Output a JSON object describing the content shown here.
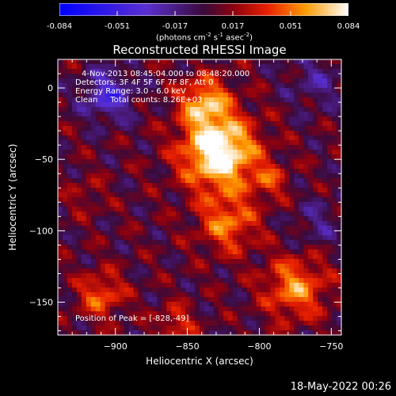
{
  "colorbar": {
    "ticks": [
      "-0.084",
      "-0.051",
      "-0.017",
      "0.017",
      "0.051",
      "0.084"
    ],
    "unit_prefix": "(photons cm",
    "unit_exp1": "-2",
    "unit_mid1": " s",
    "unit_exp2": "-1",
    "unit_mid2": " asec",
    "unit_exp3": "-2",
    "unit_suffix": ")"
  },
  "info": {
    "time": "4-Nov-2013 08:45:04.000 to 08:48:20.000",
    "detectors": "Detectors: 3F 4F 5F 6F 7F 8F, Att 0",
    "energy": "Energy Range: 3.0 - 6.0 keV",
    "clean": "Clean     Total counts: 8.26E+03",
    "peak": "Position of Peak = [-828,-49]"
  },
  "footer": "18-May-2022 00:26",
  "colors": {
    "background": "#000000",
    "text": "#ffffff"
  },
  "chart_data": {
    "type": "heatmap",
    "title": "Reconstructed RHESSI Image",
    "xlabel": "Heliocentric X (arcsec)",
    "ylabel": "Heliocentric Y (arcsec)",
    "xlim": [
      -940,
      -743
    ],
    "ylim": [
      -173,
      20
    ],
    "xticks": [
      -900,
      -850,
      -800,
      -750
    ],
    "yticks": [
      0,
      -50,
      -100,
      -150
    ],
    "colorscale": {
      "min": -0.084,
      "max": 0.084,
      "colormap": "rainbow-blue-purple-red-yellow-white"
    },
    "peak": {
      "x": -828,
      "y": -49,
      "value": 0.084
    },
    "sources": [
      {
        "x": -828,
        "y": -45,
        "amp": 0.09,
        "sigma": 18
      },
      {
        "x": -838,
        "y": -10,
        "amp": 0.055,
        "sigma": 12
      },
      {
        "x": -822,
        "y": -95,
        "amp": 0.045,
        "sigma": 14
      },
      {
        "x": -910,
        "y": -145,
        "amp": 0.04,
        "sigma": 11
      },
      {
        "x": -775,
        "y": -140,
        "amp": 0.05,
        "sigma": 15
      },
      {
        "x": -858,
        "y": -165,
        "amp": 0.03,
        "sigma": 9
      },
      {
        "x": -793,
        "y": -65,
        "amp": 0.028,
        "sigma": 9
      },
      {
        "x": -920,
        "y": -75,
        "amp": 0.015,
        "sigma": 9
      },
      {
        "x": -905,
        "y": -5,
        "amp": -0.045,
        "sigma": 12
      },
      {
        "x": -760,
        "y": 5,
        "amp": -0.02,
        "sigma": 14
      },
      {
        "x": -760,
        "y": -95,
        "amp": -0.018,
        "sigma": 12
      }
    ]
  }
}
